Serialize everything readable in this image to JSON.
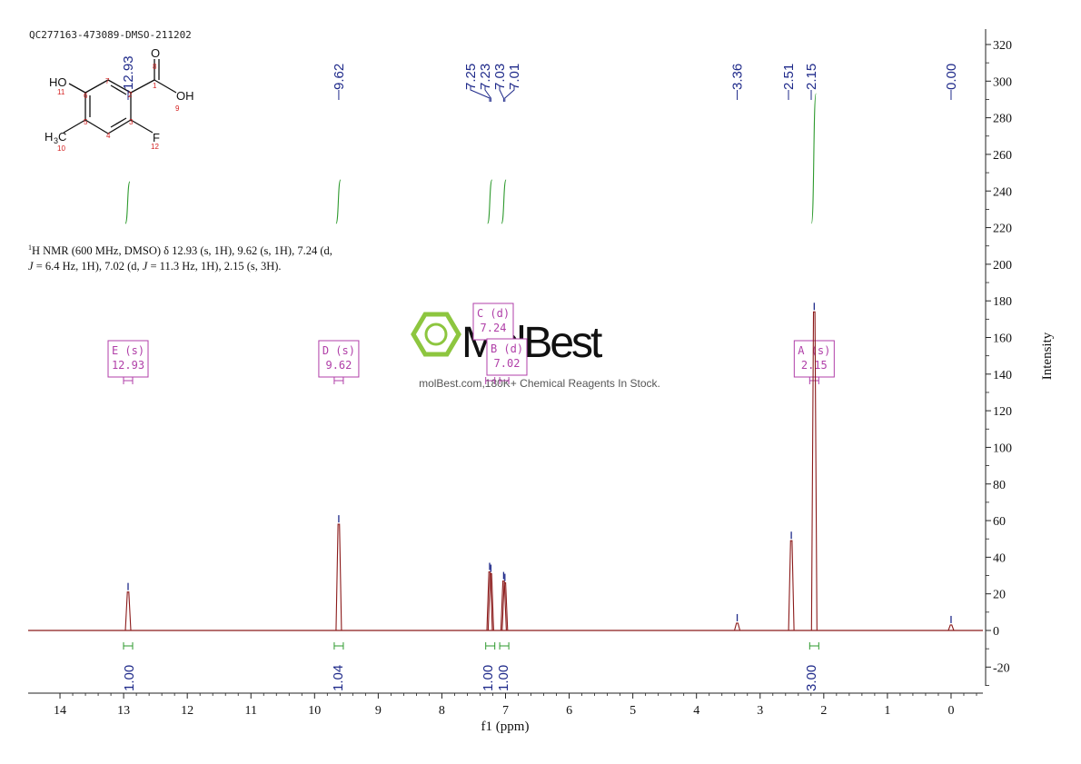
{
  "sample_id": "QC277163-473089-DMSO-211202",
  "description": {
    "nucleus_sup": "1",
    "line1_rest": "H NMR (600 MHz, DMSO) δ 12.93 (s, 1H), 9.62 (s, 1H), 7.24 (d,",
    "line2_J1": "J",
    "line2_a": " = 6.4 Hz, 1H), 7.02 (d, ",
    "line2_J2": "J",
    "line2_b": " = 11.3 Hz, 1H), 2.15 (s, 3H)."
  },
  "watermark": {
    "brand": "MolBest",
    "tagline": "molBest.com,180K+ Chemical Reagents In Stock."
  },
  "molecule": {
    "atoms": {
      "ho": "HO",
      "oh": "OH",
      "o": "O",
      "f": "F",
      "h3c_h": "H",
      "h3c_3": "3",
      "h3c_c": "C"
    },
    "numbers": [
      "1",
      "2",
      "3",
      "4",
      "5",
      "6",
      "7",
      "8",
      "9",
      "10",
      "11",
      "12"
    ]
  },
  "colors": {
    "spectrum": "#8b1a1a",
    "integral": "#2e9a2e",
    "peak_label": "#1f2a8a",
    "multiplet_box": "#b03fa8",
    "axis": "#222222",
    "atom_number": "#d42020",
    "watermark_green": "#8dc63f",
    "watermark_text": "#111111"
  },
  "chart_data": {
    "type": "line",
    "xlabel": "f1 (ppm)",
    "ylabel": "Intensity",
    "xlim": [
      14.5,
      -0.5
    ],
    "ylim": [
      -30,
      330
    ],
    "x_reversed": true,
    "x_ticks": [
      14,
      13,
      12,
      11,
      10,
      9,
      8,
      7,
      6,
      5,
      4,
      3,
      2,
      1,
      0
    ],
    "x_tick_labels": [
      "14",
      "13",
      "12",
      "11",
      "10",
      "9",
      "8",
      "7",
      "6",
      "5",
      "4",
      "3",
      "2",
      "1",
      "0"
    ],
    "y_ticks": [
      320,
      300,
      280,
      260,
      240,
      220,
      200,
      180,
      160,
      140,
      120,
      100,
      80,
      60,
      40,
      20,
      0,
      -20
    ],
    "y_tick_labels": [
      "320",
      "300",
      "280",
      "260",
      "240",
      "220",
      "200",
      "180",
      "160",
      "140",
      "120",
      "100",
      "80",
      "60",
      "40",
      "20",
      "0",
      "-20"
    ],
    "peaks": [
      {
        "ppm": 12.93,
        "height": 21
      },
      {
        "ppm": 9.62,
        "height": 58
      },
      {
        "ppm": 7.25,
        "height": 32
      },
      {
        "ppm": 7.23,
        "height": 31
      },
      {
        "ppm": 7.03,
        "height": 27
      },
      {
        "ppm": 7.01,
        "height": 26
      },
      {
        "ppm": 3.36,
        "height": 4
      },
      {
        "ppm": 2.51,
        "height": 49
      },
      {
        "ppm": 2.15,
        "height": 174
      },
      {
        "ppm": 0.0,
        "height": 3
      }
    ],
    "peak_labels": [
      {
        "ppm": 12.93,
        "label": "12.93"
      },
      {
        "ppm": 9.62,
        "label": "9.62"
      },
      {
        "ppm": 7.25,
        "label": "7.25"
      },
      {
        "ppm": 7.23,
        "label": "7.23"
      },
      {
        "ppm": 7.03,
        "label": "7.03"
      },
      {
        "ppm": 7.01,
        "label": "7.01"
      },
      {
        "ppm": 3.36,
        "label": "3.36"
      },
      {
        "ppm": 2.51,
        "label": "2.51"
      },
      {
        "ppm": 2.15,
        "label": "2.15"
      },
      {
        "ppm": 0.0,
        "label": "0.00"
      }
    ],
    "integrals": [
      {
        "ppm": 12.93,
        "value": "1.00"
      },
      {
        "ppm": 9.62,
        "value": "1.04"
      },
      {
        "ppm": 7.24,
        "value": "1.00"
      },
      {
        "ppm": 7.02,
        "value": "1.00"
      },
      {
        "ppm": 2.15,
        "value": "3.00"
      }
    ],
    "multiplets": [
      {
        "ppm": 12.93,
        "letter": "E (s)",
        "shift": "12.93"
      },
      {
        "ppm": 9.62,
        "letter": "D (s)",
        "shift": "9.62"
      },
      {
        "ppm": 7.24,
        "letter": "C (d)",
        "shift": "7.24"
      },
      {
        "ppm": 7.02,
        "letter": "B (d)",
        "shift": "7.02"
      },
      {
        "ppm": 2.15,
        "letter": "A (s)",
        "shift": "2.15"
      }
    ]
  }
}
